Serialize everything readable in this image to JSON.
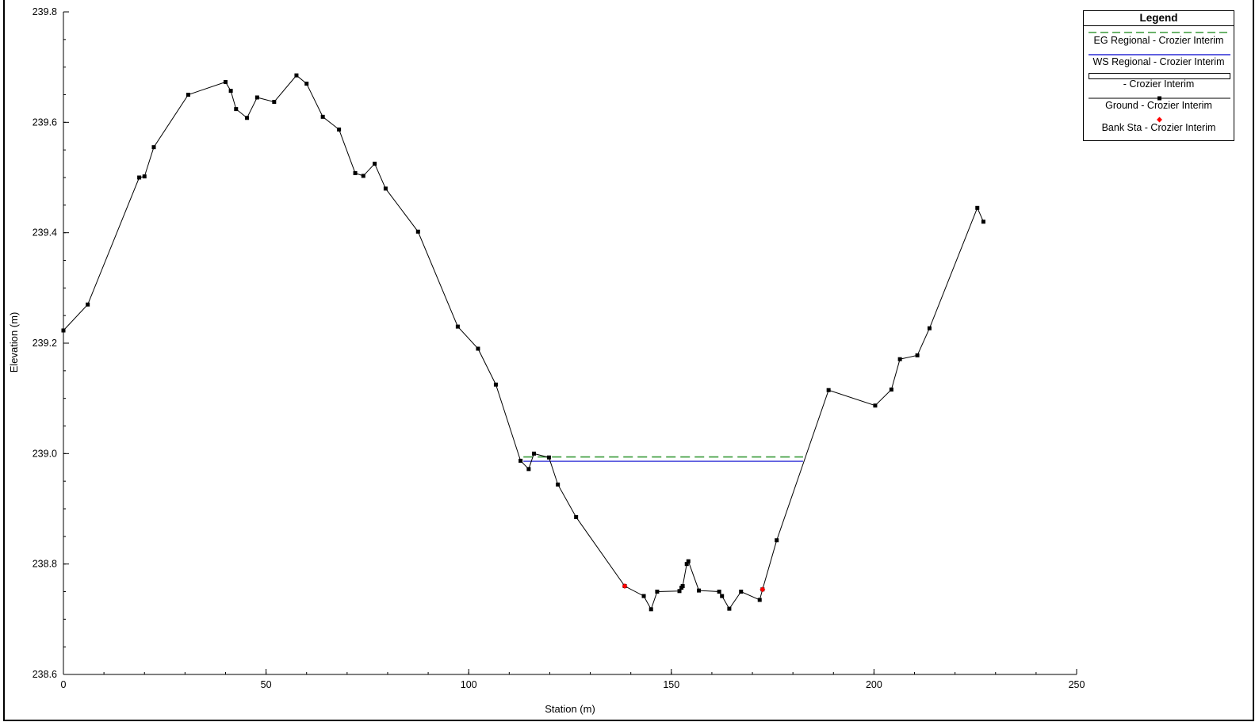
{
  "chart_data": {
    "type": "line",
    "xlabel": "Station (m)",
    "ylabel": "Elevation (m)",
    "xlim": [
      0,
      250
    ],
    "ylim": [
      238.6,
      239.8
    ],
    "x_ticks": [
      "0",
      "50",
      "100",
      "150",
      "200",
      "250"
    ],
    "y_ticks": [
      "238.6",
      "238.8",
      "239.0",
      "239.2",
      "239.4",
      "239.6",
      "239.8"
    ],
    "legend_title": "Legend",
    "legend_position": "top-right",
    "series": [
      {
        "name": "EG Regional - Crozier Interim",
        "style": "dashed",
        "color": "#3a9a3a",
        "x": [
          113.5,
          182.5
        ],
        "y": [
          238.994,
          238.994
        ]
      },
      {
        "name": "WS Regional - Crozier Interim",
        "style": "solid",
        "color": "#2b2bd6",
        "x": [
          113.5,
          182.5
        ],
        "y": [
          238.986,
          238.986
        ]
      },
      {
        "name": "- Crozier Interim",
        "style": "box",
        "color": "#000000",
        "x": [],
        "y": []
      },
      {
        "name": "Ground - Crozier Interim",
        "style": "line-square-markers",
        "color": "#000000",
        "x": [
          0,
          6,
          18.7,
          20,
          22.3,
          30.8,
          40,
          41.3,
          42.6,
          45.3,
          47.8,
          52,
          57.5,
          60,
          64,
          68,
          72,
          74,
          76.8,
          79.5,
          87.5,
          97.3,
          102.3,
          106.7,
          112.8,
          114.8,
          116.1,
          119.8,
          122,
          126.5,
          138.5,
          143.2,
          145,
          146.5,
          152,
          152.5,
          152.8,
          153.8,
          154.2,
          156.8,
          161.8,
          162.5,
          164.3,
          167.2,
          171.8,
          172.5,
          176,
          188.8,
          200.3,
          204.3,
          206.4,
          210.7,
          213.7,
          225.5,
          227
        ],
        "y": [
          239.223,
          239.27,
          239.5,
          239.502,
          239.555,
          239.65,
          239.673,
          239.657,
          239.624,
          239.608,
          239.645,
          239.637,
          239.685,
          239.67,
          239.61,
          239.587,
          239.508,
          239.503,
          239.525,
          239.48,
          239.402,
          239.23,
          239.19,
          239.125,
          238.987,
          238.972,
          239.0,
          238.993,
          238.944,
          238.885,
          238.76,
          238.742,
          238.718,
          238.75,
          238.751,
          238.757,
          238.76,
          238.8,
          238.805,
          238.752,
          238.75,
          238.742,
          238.719,
          238.75,
          238.735,
          238.754,
          238.843,
          239.115,
          239.087,
          239.116,
          239.171,
          239.178,
          239.227,
          239.445,
          239.42
        ]
      },
      {
        "name": "Bank Sta - Crozier Interim",
        "style": "red-markers",
        "color": "#ff0000",
        "x": [
          138.5,
          172.5
        ],
        "y": [
          238.76,
          238.754
        ]
      }
    ]
  }
}
